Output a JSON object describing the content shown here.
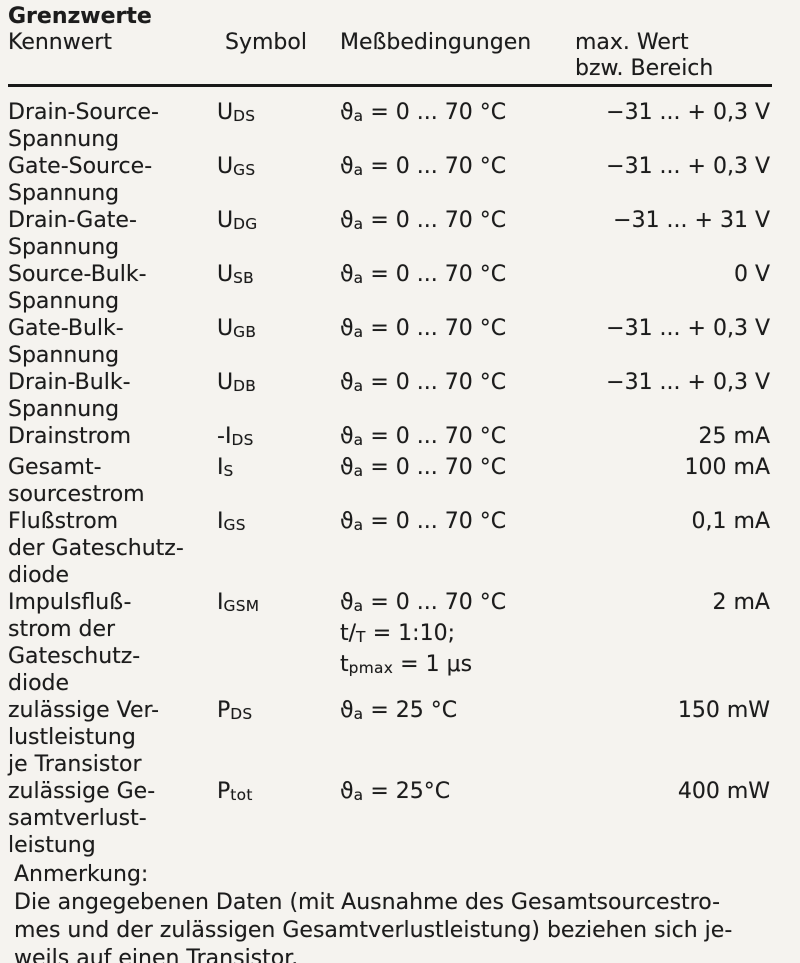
{
  "colors": {
    "paper": "#f5f3ef",
    "ink": "#1c1c1c"
  },
  "table": {
    "title": "Grenzwerte",
    "columns": {
      "kennwert": "Kennwert",
      "symbol": "Symbol",
      "bedingungen": "Meßbedingungen",
      "wert_line1": "max. Wert",
      "wert_line2": "bzw. Bereich"
    },
    "rows": [
      {
        "name": [
          "Drain-Source-",
          "Spannung"
        ],
        "symbol": "U~DS~",
        "cond": [
          "ϑ~a~ = 0 ... 70 °C"
        ],
        "value": "−31 ... + 0,3 V"
      },
      {
        "name": [
          "Gate-Source-",
          "Spannung"
        ],
        "symbol": "U~GS~",
        "cond": [
          "ϑ~a~ = 0 ... 70 °C"
        ],
        "value": "−31 ... + 0,3 V"
      },
      {
        "name": [
          "Drain-Gate-",
          "Spannung"
        ],
        "symbol": "U~DG~",
        "cond": [
          "ϑ~a~ = 0 ... 70 °C"
        ],
        "value": "−31 ... + 31 V"
      },
      {
        "name": [
          "Source-Bulk-",
          "Spannung"
        ],
        "symbol": "U~SB~",
        "cond": [
          "ϑ~a~ = 0 ... 70 °C"
        ],
        "value": "0 V"
      },
      {
        "name": [
          "Gate-Bulk-",
          "Spannung"
        ],
        "symbol": "U~GB~",
        "cond": [
          "ϑ~a~ = 0 ... 70 °C"
        ],
        "value": "−31 ... + 0,3 V"
      },
      {
        "name": [
          "Drain-Bulk-",
          "Spannung"
        ],
        "symbol": "U~DB~",
        "cond": [
          "ϑ~a~ = 0 ... 70 °C"
        ],
        "value": "−31 ... + 0,3 V"
      },
      {
        "name": [
          "Drainstrom"
        ],
        "symbol": "-I~DS~",
        "cond": [
          "ϑ~a~ = 0 ... 70 °C"
        ],
        "value": "25 mA"
      },
      {
        "name": [
          "Gesamt-",
          "sourcestrom"
        ],
        "symbol": "I~S~",
        "cond": [
          "ϑ~a~ = 0 ... 70 °C"
        ],
        "value": "100 mA"
      },
      {
        "name": [
          "Flußstrom",
          "der Gateschutz-",
          "diode"
        ],
        "symbol": "I~GS~",
        "cond": [
          "ϑ~a~ = 0 ... 70 °C"
        ],
        "value": "0,1 mA"
      },
      {
        "name": [
          "Impulsfluß-",
          "strom der",
          "Gateschutz-",
          "diode"
        ],
        "symbol": "I~GSM~",
        "cond": [
          "ϑ~a~ = 0 ... 70 °C",
          "t/~T~ = 1:10;",
          "t~pmax~ = 1 μs"
        ],
        "value": "2 mA"
      },
      {
        "name": [
          "zulässige Ver-",
          "lustleistung",
          "je Transistor"
        ],
        "symbol": "P~DS~",
        "cond": [
          "ϑ~a~ = 25 °C"
        ],
        "value": "150 mW"
      },
      {
        "name": [
          "zulässige Ge-",
          "samtverlust-",
          "leistung"
        ],
        "symbol": "P~tot~",
        "cond": [
          "ϑ~a~ = 25°C"
        ],
        "value": "400 mW"
      }
    ]
  },
  "note": {
    "heading": "Anmerkung:",
    "lines": [
      "Die angegebenen Daten (mit Ausnahme des Gesamtsourcestro-",
      "mes und der zulässigen Gesamtverlustleistung) beziehen sich je-",
      "weils auf einen Transistor."
    ]
  }
}
